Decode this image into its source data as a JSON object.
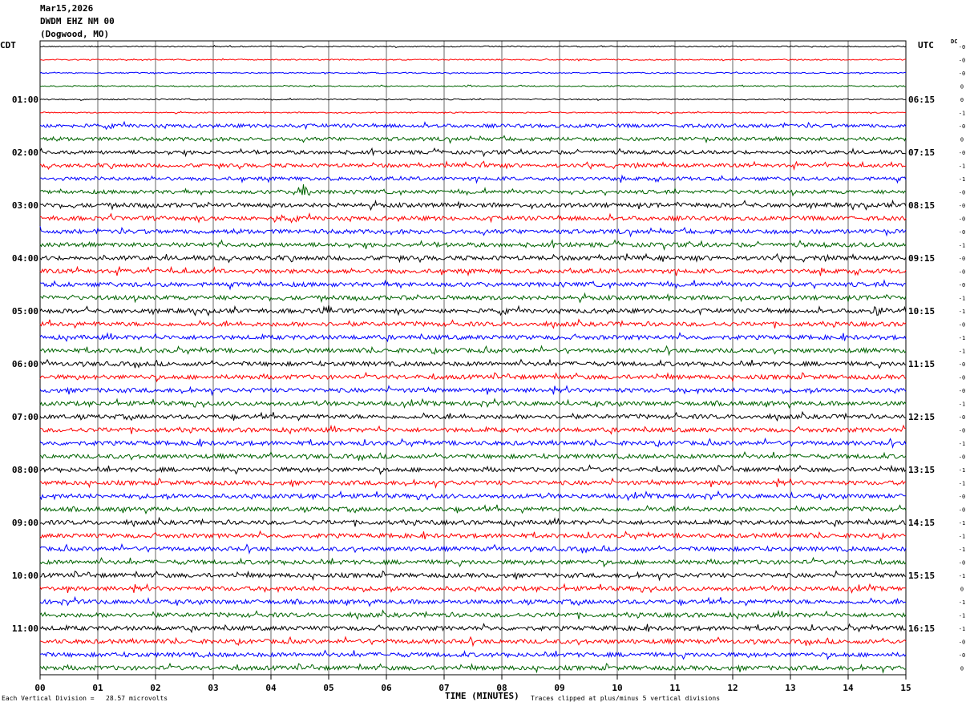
{
  "header": {
    "date": "Mar15,2026",
    "station": "DWDM EHZ NM 00",
    "location": "(Dogwood, MO)"
  },
  "left_zone_label": "CDT",
  "right_zone_label": "UTC",
  "dc_label": "DC",
  "footer": {
    "scale_note": "Each Vertical Division =   28.57 microvolts",
    "x_title": "TIME (MINUTES)",
    "clip_note": "Traces clipped at plus/minus 5 vertical divisions"
  },
  "colors": {
    "trace_cycle": [
      "#000000",
      "#ff0000",
      "#0000ff",
      "#006400"
    ],
    "grid": "#000000"
  },
  "chart_data": {
    "type": "line",
    "description_kind": "helicorder",
    "x_minutes_range": [
      0,
      15
    ],
    "x_ticks": [
      "00",
      "01",
      "02",
      "03",
      "04",
      "05",
      "06",
      "07",
      "08",
      "09",
      "10",
      "11",
      "12",
      "13",
      "14",
      "15"
    ],
    "trace_count": 48,
    "trace_interval_minutes": 15,
    "left_hour_labels": [
      "01:00",
      "02:00",
      "03:00",
      "04:00",
      "05:00",
      "06:00",
      "07:00",
      "08:00",
      "09:00",
      "10:00",
      "11:00"
    ],
    "right_hour_labels": [
      "06:15",
      "07:15",
      "08:15",
      "09:15",
      "10:15",
      "11:15",
      "12:15",
      "13:15",
      "14:15",
      "15:15",
      "16:15"
    ],
    "dc_offsets": [
      "-0",
      "-0",
      "-0",
      "0",
      "0",
      "-1",
      "-0",
      "0",
      "-0",
      "-1",
      "-1",
      "-0",
      "-0",
      "-0",
      "-0",
      "-1",
      "-0",
      "-0",
      "-0",
      "-1",
      "-1",
      "-0",
      "-1",
      "-1",
      "-0",
      "-0",
      "-0",
      "-1",
      "-0",
      "-0",
      "-1",
      "-0",
      "-1",
      "-1",
      "-0",
      "-0",
      "-1",
      "-1",
      "-1",
      "-0",
      "-1",
      "0",
      "-1",
      "-1",
      "-1",
      "-0",
      "-0",
      "0"
    ],
    "events": [
      {
        "trace": 11,
        "minute": 4.55,
        "amp": 18
      },
      {
        "trace": 10,
        "minute": 1.1,
        "amp": 8
      },
      {
        "trace": 20,
        "minute": 5.0,
        "amp": 9
      },
      {
        "trace": 20,
        "minute": 14.5,
        "amp": 8
      },
      {
        "trace": 9,
        "minute": 7.7,
        "amp": 7
      },
      {
        "trace": 14,
        "minute": 0.0,
        "amp": 7
      },
      {
        "trace": 13,
        "minute": 4.1,
        "amp": 6
      }
    ]
  }
}
